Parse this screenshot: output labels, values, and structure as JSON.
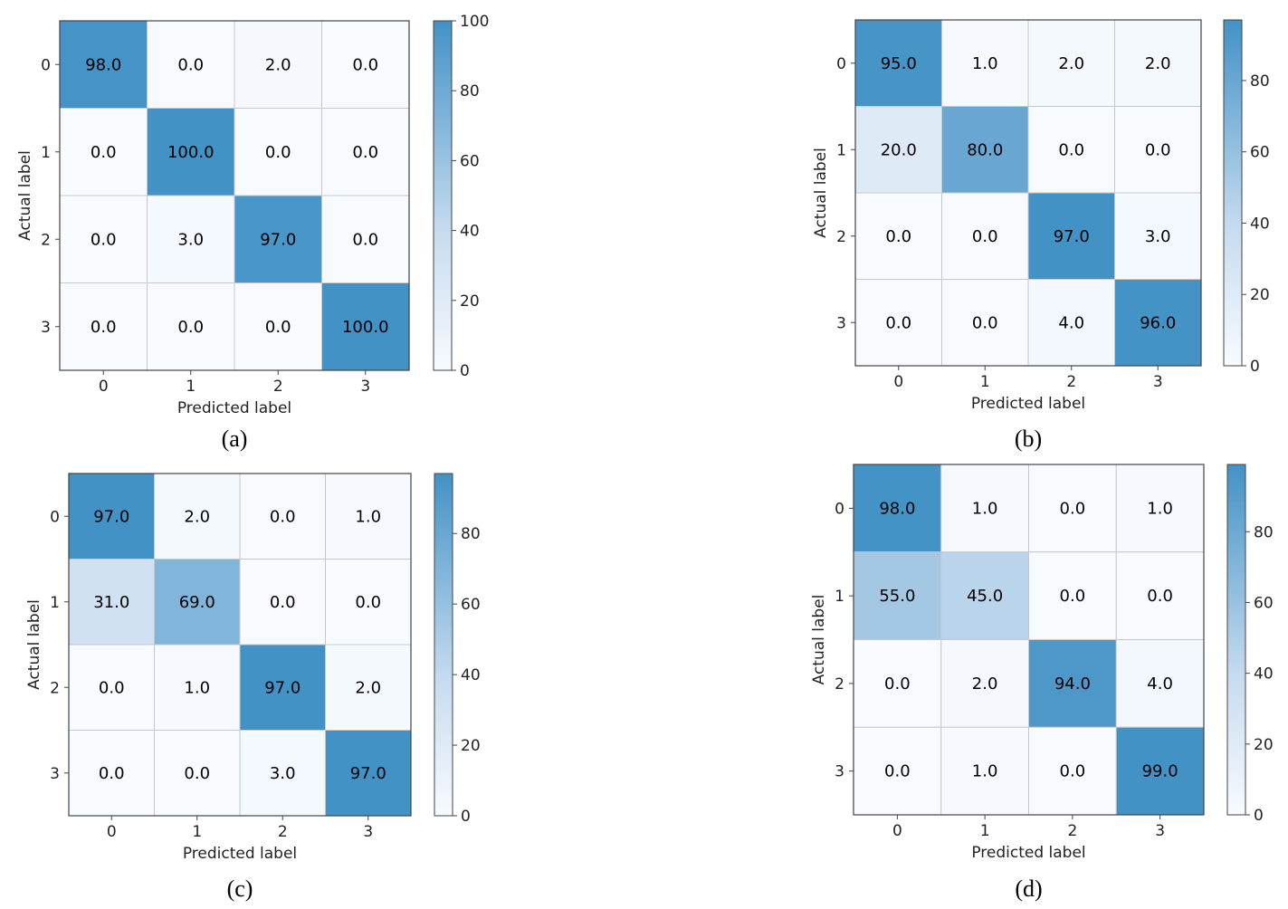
{
  "figure": {
    "colormap": {
      "name": "Blues",
      "low": "#f7fbff",
      "mid": "#c6dbef",
      "high": "#4292c6",
      "text_color": "#000000"
    }
  },
  "chart_data": [
    {
      "type": "heatmap",
      "panel": "(a)",
      "caption": "(a)",
      "xlabel": "Predicted label",
      "ylabel": "Actual label",
      "x_tick_labels": [
        "0",
        "1",
        "2",
        "3"
      ],
      "y_tick_labels": [
        "0",
        "1",
        "2",
        "3"
      ],
      "values": [
        [
          98.0,
          0.0,
          2.0,
          0.0
        ],
        [
          0.0,
          100.0,
          0.0,
          0.0
        ],
        [
          0.0,
          3.0,
          97.0,
          0.0
        ],
        [
          0.0,
          0.0,
          0.0,
          100.0
        ]
      ],
      "value_labels": [
        [
          "98.0",
          "0.0",
          "2.0",
          "0.0"
        ],
        [
          "0.0",
          "100.0",
          "0.0",
          "0.0"
        ],
        [
          "0.0",
          "3.0",
          "97.0",
          "0.0"
        ],
        [
          "0.0",
          "0.0",
          "0.0",
          "100.0"
        ]
      ],
      "color_range": [
        0,
        100
      ],
      "colorbar_ticks": [
        0,
        20,
        40,
        60,
        80,
        100
      ],
      "colorbar_tick_labels": [
        "0",
        "20",
        "40",
        "60",
        "80",
        "100"
      ]
    },
    {
      "type": "heatmap",
      "panel": "(b)",
      "caption": "(b)",
      "xlabel": "Predicted label",
      "ylabel": "Actual label",
      "x_tick_labels": [
        "0",
        "1",
        "2",
        "3"
      ],
      "y_tick_labels": [
        "0",
        "1",
        "2",
        "3"
      ],
      "values": [
        [
          95.0,
          1.0,
          2.0,
          2.0
        ],
        [
          20.0,
          80.0,
          0.0,
          0.0
        ],
        [
          0.0,
          0.0,
          97.0,
          3.0
        ],
        [
          0.0,
          0.0,
          4.0,
          96.0
        ]
      ],
      "value_labels": [
        [
          "95.0",
          "1.0",
          "2.0",
          "2.0"
        ],
        [
          "20.0",
          "80.0",
          "0.0",
          "0.0"
        ],
        [
          "0.0",
          "0.0",
          "97.0",
          "3.0"
        ],
        [
          "0.0",
          "0.0",
          "4.0",
          "96.0"
        ]
      ],
      "color_range": [
        0,
        97
      ],
      "colorbar_ticks": [
        0,
        20,
        40,
        60,
        80
      ],
      "colorbar_tick_labels": [
        "0",
        "20",
        "40",
        "60",
        "80"
      ]
    },
    {
      "type": "heatmap",
      "panel": "(c)",
      "caption": "(c)",
      "xlabel": "Predicted label",
      "ylabel": "Actual label",
      "x_tick_labels": [
        "0",
        "1",
        "2",
        "3"
      ],
      "y_tick_labels": [
        "0",
        "1",
        "2",
        "3"
      ],
      "values": [
        [
          97.0,
          2.0,
          0.0,
          1.0
        ],
        [
          31.0,
          69.0,
          0.0,
          0.0
        ],
        [
          0.0,
          1.0,
          97.0,
          2.0
        ],
        [
          0.0,
          0.0,
          3.0,
          97.0
        ]
      ],
      "value_labels": [
        [
          "97.0",
          "2.0",
          "0.0",
          "1.0"
        ],
        [
          "31.0",
          "69.0",
          "0.0",
          "0.0"
        ],
        [
          "0.0",
          "1.0",
          "97.0",
          "2.0"
        ],
        [
          "0.0",
          "0.0",
          "3.0",
          "97.0"
        ]
      ],
      "color_range": [
        0,
        97
      ],
      "colorbar_ticks": [
        0,
        20,
        40,
        60,
        80
      ],
      "colorbar_tick_labels": [
        "0",
        "20",
        "40",
        "60",
        "80"
      ]
    },
    {
      "type": "heatmap",
      "panel": "(d)",
      "caption": "(d)",
      "xlabel": "Predicted label",
      "ylabel": "Actual label",
      "x_tick_labels": [
        "0",
        "1",
        "2",
        "3"
      ],
      "y_tick_labels": [
        "0",
        "1",
        "2",
        "3"
      ],
      "values": [
        [
          98.0,
          1.0,
          0.0,
          1.0
        ],
        [
          55.0,
          45.0,
          0.0,
          0.0
        ],
        [
          0.0,
          2.0,
          94.0,
          4.0
        ],
        [
          0.0,
          1.0,
          0.0,
          99.0
        ]
      ],
      "value_labels": [
        [
          "98.0",
          "1.0",
          "0.0",
          "1.0"
        ],
        [
          "55.0",
          "45.0",
          "0.0",
          "0.0"
        ],
        [
          "0.0",
          "2.0",
          "94.0",
          "4.0"
        ],
        [
          "0.0",
          "1.0",
          "0.0",
          "99.0"
        ]
      ],
      "color_range": [
        0,
        99
      ],
      "colorbar_ticks": [
        0,
        20,
        40,
        60,
        80
      ],
      "colorbar_tick_labels": [
        "0",
        "20",
        "40",
        "60",
        "80"
      ]
    }
  ]
}
